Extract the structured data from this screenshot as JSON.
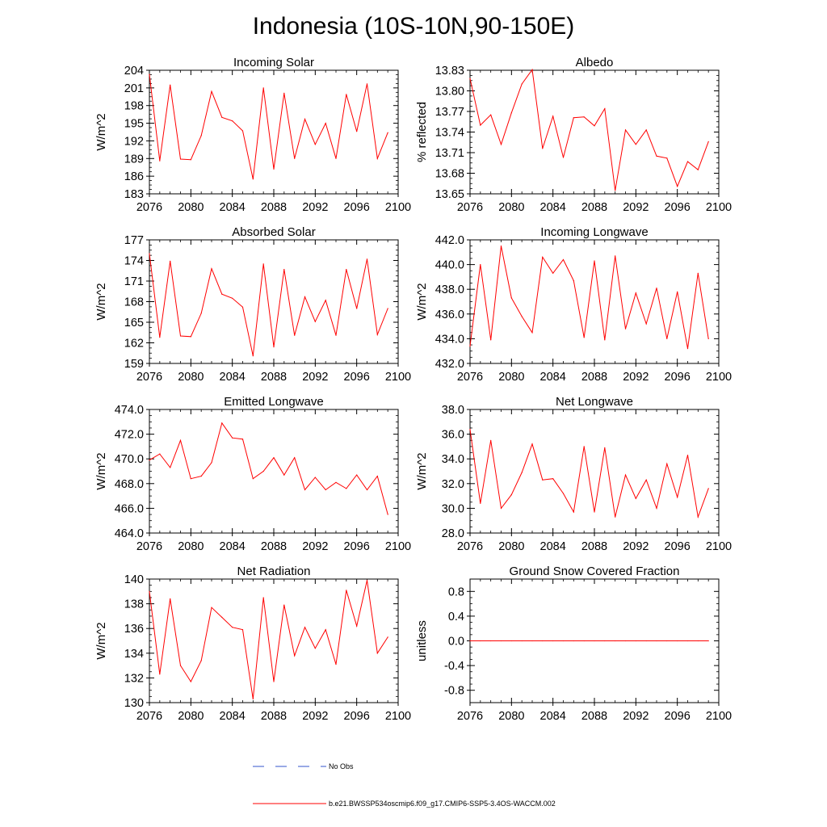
{
  "figure_title": "Indonesia (10S-10N,90-150E)",
  "series_color": "#ff0000",
  "obs_color": "#3355cc",
  "legend": [
    {
      "label": "No Obs",
      "style": "dashed",
      "color": "#3355cc"
    },
    {
      "label": "b.e21.BWSSP534oscmip6.f09_g17.CMIP6-SSP5-3.4OS-WACCM.002",
      "style": "solid",
      "color": "#ff0000"
    }
  ],
  "chart_data": [
    {
      "type": "line",
      "title": "Incoming Solar",
      "ylabel": "W/m^2",
      "xlim": [
        2076,
        2100
      ],
      "ylim": [
        183,
        204
      ],
      "xticks": [
        2076,
        2080,
        2084,
        2088,
        2092,
        2096,
        2100
      ],
      "yticks": [
        183,
        186,
        189,
        192,
        195,
        198,
        201,
        204
      ],
      "ytick_labels": [
        "183",
        "186",
        "189",
        "192",
        "195",
        "198",
        "201",
        "204"
      ],
      "x": [
        2076,
        2077,
        2078,
        2079,
        2080,
        2081,
        2082,
        2083,
        2084,
        2085,
        2086,
        2087,
        2088,
        2089,
        2090,
        2091,
        2092,
        2093,
        2094,
        2095,
        2096,
        2097,
        2098,
        2099
      ],
      "values": [
        203.3,
        188.6,
        201.5,
        188.9,
        188.8,
        192.9,
        200.4,
        196.0,
        195.4,
        193.7,
        185.5,
        201.0,
        187.2,
        200.1,
        189.0,
        195.7,
        191.4,
        195.0,
        189.0,
        199.9,
        193.6,
        201.7,
        189.0,
        193.4
      ]
    },
    {
      "type": "line",
      "title": "Albedo",
      "ylabel": "% reflected",
      "xlim": [
        2076,
        2100
      ],
      "ylim": [
        13.65,
        13.83
      ],
      "xticks": [
        2076,
        2080,
        2084,
        2088,
        2092,
        2096,
        2100
      ],
      "yticks": [
        13.65,
        13.68,
        13.71,
        13.74,
        13.77,
        13.8,
        13.83
      ],
      "ytick_labels": [
        "13.65",
        "13.68",
        "13.71",
        "13.74",
        "13.77",
        "13.80",
        "13.83"
      ],
      "x": [
        2076,
        2077,
        2078,
        2079,
        2080,
        2081,
        2082,
        2083,
        2084,
        2085,
        2086,
        2087,
        2088,
        2089,
        2090,
        2091,
        2092,
        2093,
        2094,
        2095,
        2096,
        2097,
        2098,
        2099
      ],
      "values": [
        13.818,
        13.75,
        13.765,
        13.722,
        13.768,
        13.81,
        13.831,
        13.716,
        13.763,
        13.703,
        13.761,
        13.762,
        13.749,
        13.774,
        13.655,
        13.743,
        13.722,
        13.743,
        13.705,
        13.702,
        13.661,
        13.697,
        13.685,
        13.726
      ]
    },
    {
      "type": "line",
      "title": "Absorbed Solar",
      "ylabel": "W/m^2",
      "xlim": [
        2076,
        2100
      ],
      "ylim": [
        159,
        177
      ],
      "xticks": [
        2076,
        2080,
        2084,
        2088,
        2092,
        2096,
        2100
      ],
      "yticks": [
        159,
        162,
        165,
        168,
        171,
        174,
        177
      ],
      "ytick_labels": [
        "159",
        "162",
        "165",
        "168",
        "171",
        "174",
        "177"
      ],
      "x": [
        2076,
        2077,
        2078,
        2079,
        2080,
        2081,
        2082,
        2083,
        2084,
        2085,
        2086,
        2087,
        2088,
        2089,
        2090,
        2091,
        2092,
        2093,
        2094,
        2095,
        2096,
        2097,
        2098,
        2099
      ],
      "values": [
        175.0,
        162.8,
        173.9,
        163.0,
        162.9,
        166.3,
        172.8,
        169.1,
        168.5,
        167.2,
        160.1,
        173.5,
        161.4,
        172.7,
        163.1,
        168.7,
        165.1,
        168.2,
        163.1,
        172.7,
        167.0,
        174.2,
        163.2,
        167.0
      ]
    },
    {
      "type": "line",
      "title": "Incoming Longwave",
      "ylabel": "W/m^2",
      "xlim": [
        2076,
        2100
      ],
      "ylim": [
        432,
        442
      ],
      "xticks": [
        2076,
        2080,
        2084,
        2088,
        2092,
        2096,
        2100
      ],
      "yticks": [
        432,
        434,
        436,
        438,
        440,
        442
      ],
      "ytick_labels": [
        "432.0",
        "434.0",
        "436.0",
        "438.0",
        "440.0",
        "442.0"
      ],
      "x": [
        2076,
        2077,
        2078,
        2079,
        2080,
        2081,
        2082,
        2083,
        2084,
        2085,
        2086,
        2087,
        2088,
        2089,
        2090,
        2091,
        2092,
        2093,
        2094,
        2095,
        2096,
        2097,
        2098,
        2099
      ],
      "values": [
        433.4,
        440.0,
        433.9,
        441.5,
        437.3,
        435.8,
        434.5,
        440.6,
        439.3,
        440.4,
        438.7,
        434.1,
        440.3,
        433.9,
        440.7,
        434.8,
        437.7,
        435.2,
        438.1,
        434.0,
        437.8,
        433.2,
        439.3,
        434.0
      ]
    },
    {
      "type": "line",
      "title": "Emitted Longwave",
      "ylabel": "W/m^2",
      "xlim": [
        2076,
        2100
      ],
      "ylim": [
        464,
        474
      ],
      "xticks": [
        2076,
        2080,
        2084,
        2088,
        2092,
        2096,
        2100
      ],
      "yticks": [
        464,
        466,
        468,
        470,
        472,
        474
      ],
      "ytick_labels": [
        "464.0",
        "466.0",
        "468.0",
        "470.0",
        "472.0",
        "474.0"
      ],
      "x": [
        2076,
        2077,
        2078,
        2079,
        2080,
        2081,
        2082,
        2083,
        2084,
        2085,
        2086,
        2087,
        2088,
        2089,
        2090,
        2091,
        2092,
        2093,
        2094,
        2095,
        2096,
        2097,
        2098,
        2099
      ],
      "values": [
        469.9,
        470.4,
        469.3,
        471.5,
        468.4,
        468.6,
        469.7,
        472.9,
        471.7,
        471.6,
        468.4,
        469.0,
        470.1,
        468.7,
        470.1,
        467.5,
        468.5,
        467.5,
        468.1,
        467.6,
        468.7,
        467.5,
        468.6,
        465.5
      ]
    },
    {
      "type": "line",
      "title": "Net Longwave",
      "ylabel": "W/m^2",
      "xlim": [
        2076,
        2100
      ],
      "ylim": [
        28,
        38
      ],
      "xticks": [
        2076,
        2080,
        2084,
        2088,
        2092,
        2096,
        2100
      ],
      "yticks": [
        28,
        30,
        32,
        34,
        36,
        38
      ],
      "ytick_labels": [
        "28.0",
        "30.0",
        "32.0",
        "34.0",
        "36.0",
        "38.0"
      ],
      "x": [
        2076,
        2077,
        2078,
        2079,
        2080,
        2081,
        2082,
        2083,
        2084,
        2085,
        2086,
        2087,
        2088,
        2089,
        2090,
        2091,
        2092,
        2093,
        2094,
        2095,
        2096,
        2097,
        2098,
        2099
      ],
      "values": [
        36.4,
        30.4,
        35.5,
        30.0,
        31.1,
        32.9,
        35.2,
        32.3,
        32.4,
        31.2,
        29.7,
        35.0,
        29.7,
        34.9,
        29.3,
        32.7,
        30.8,
        32.3,
        30.0,
        33.6,
        30.9,
        34.3,
        29.3,
        31.6
      ]
    },
    {
      "type": "line",
      "title": "Net Radiation",
      "ylabel": "W/m^2",
      "xlim": [
        2076,
        2100
      ],
      "ylim": [
        130,
        140
      ],
      "xticks": [
        2076,
        2080,
        2084,
        2088,
        2092,
        2096,
        2100
      ],
      "yticks": [
        130,
        132,
        134,
        136,
        138,
        140
      ],
      "ytick_labels": [
        "130",
        "132",
        "134",
        "136",
        "138",
        "140"
      ],
      "x": [
        2076,
        2077,
        2078,
        2079,
        2080,
        2081,
        2082,
        2083,
        2084,
        2085,
        2086,
        2087,
        2088,
        2089,
        2090,
        2091,
        2092,
        2093,
        2094,
        2095,
        2096,
        2097,
        2098,
        2099
      ],
      "values": [
        139.0,
        132.3,
        138.4,
        133.0,
        131.7,
        133.4,
        137.7,
        136.9,
        136.1,
        135.9,
        130.3,
        138.5,
        131.7,
        137.9,
        133.8,
        136.1,
        134.4,
        135.9,
        133.1,
        139.1,
        136.2,
        139.9,
        134.0,
        135.3
      ]
    },
    {
      "type": "line",
      "title": "Ground Snow Covered Fraction",
      "ylabel": "unitless",
      "xlim": [
        2076,
        2100
      ],
      "ylim": [
        -1.0,
        1.0
      ],
      "xticks": [
        2076,
        2080,
        2084,
        2088,
        2092,
        2096,
        2100
      ],
      "yticks": [
        -0.8,
        -0.4,
        0.0,
        0.4,
        0.8
      ],
      "ytick_labels": [
        "-0.8",
        "-0.4",
        "0.0",
        "0.4",
        "0.8"
      ],
      "x": [
        2076,
        2077,
        2078,
        2079,
        2080,
        2081,
        2082,
        2083,
        2084,
        2085,
        2086,
        2087,
        2088,
        2089,
        2090,
        2091,
        2092,
        2093,
        2094,
        2095,
        2096,
        2097,
        2098,
        2099
      ],
      "values": [
        0,
        0,
        0,
        0,
        0,
        0,
        0,
        0,
        0,
        0,
        0,
        0,
        0,
        0,
        0,
        0,
        0,
        0,
        0,
        0,
        0,
        0,
        0,
        0
      ]
    }
  ]
}
